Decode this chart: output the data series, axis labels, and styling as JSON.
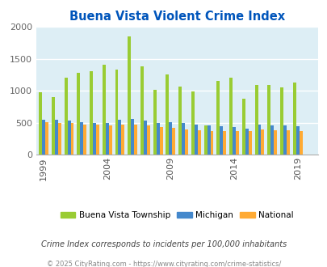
{
  "title": "Buena Vista Violent Crime Index",
  "title_color": "#0055bb",
  "subtitle": "Crime Index corresponds to incidents per 100,000 inhabitants",
  "footer": "© 2025 CityRating.com - https://www.cityrating.com/crime-statistics/",
  "years": [
    1999,
    2000,
    2001,
    2002,
    2003,
    2004,
    2005,
    2006,
    2007,
    2008,
    2009,
    2010,
    2011,
    2012,
    2013,
    2014,
    2015,
    2016,
    2017,
    2018,
    2019,
    2020
  ],
  "buena_vista": [
    980,
    900,
    1200,
    1280,
    1300,
    1410,
    1330,
    1850,
    1380,
    1010,
    1260,
    1060,
    985,
    460,
    1160,
    1200,
    875,
    1095,
    1095,
    1050,
    1135,
    0
  ],
  "michigan": [
    545,
    545,
    535,
    515,
    500,
    500,
    550,
    565,
    540,
    500,
    505,
    500,
    470,
    460,
    445,
    435,
    415,
    470,
    455,
    460,
    445,
    0
  ],
  "national": [
    510,
    500,
    495,
    470,
    470,
    460,
    470,
    470,
    460,
    440,
    420,
    400,
    380,
    375,
    365,
    370,
    375,
    395,
    390,
    385,
    370,
    0
  ],
  "color_bv": "#99cc33",
  "color_mi": "#4488cc",
  "color_na": "#ffaa33",
  "bg_color": "#ddeef5",
  "ylim": [
    0,
    2000
  ],
  "yticks": [
    0,
    500,
    1000,
    1500,
    2000
  ],
  "bar_width": 0.25,
  "legend_labels": [
    "Buena Vista Township",
    "Michigan",
    "National"
  ],
  "subtitle_color": "#444444",
  "footer_color": "#888888",
  "tick_years": [
    1999,
    2004,
    2009,
    2014,
    2019
  ]
}
